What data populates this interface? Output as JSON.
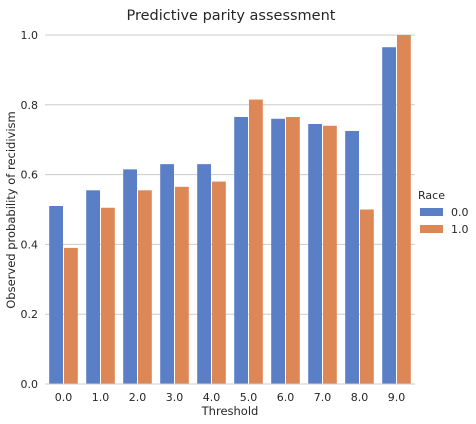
{
  "chart_data": {
    "type": "bar",
    "title": "Predictive parity assessment",
    "xlabel": "Threshold",
    "ylabel": "Observed probability of recidivism",
    "categories": [
      "0.0",
      "1.0",
      "2.0",
      "3.0",
      "4.0",
      "5.0",
      "6.0",
      "7.0",
      "8.0",
      "9.0"
    ],
    "series": [
      {
        "name": "0.0",
        "color": "#5a7fc7",
        "values": [
          0.51,
          0.555,
          0.615,
          0.63,
          0.63,
          0.765,
          0.76,
          0.745,
          0.725,
          0.965
        ]
      },
      {
        "name": "1.0",
        "color": "#dd8757",
        "values": [
          0.39,
          0.505,
          0.555,
          0.565,
          0.58,
          0.815,
          0.765,
          0.74,
          0.5,
          1.0
        ]
      }
    ],
    "ylim": [
      0.0,
      1.0
    ],
    "yticks": [
      "0.0",
      "0.2",
      "0.4",
      "0.6",
      "0.8",
      "1.0"
    ],
    "grid": true,
    "legend": {
      "title": "Race",
      "placement": "right"
    }
  }
}
